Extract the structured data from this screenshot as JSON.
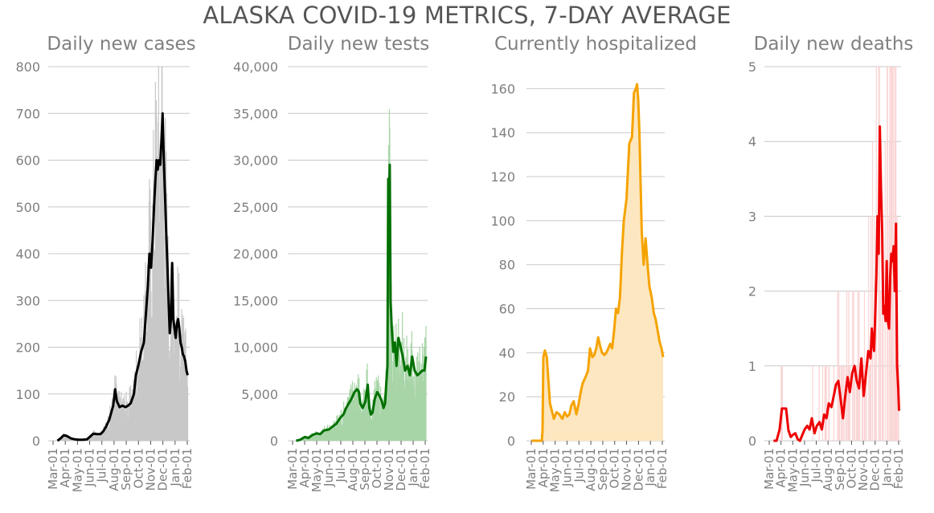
{
  "chart_data": {
    "title": "ALASKA COVID-19 METRICS, 7-DAY AVERAGE",
    "months": [
      "Mar-01",
      "Apr-01",
      "May-01",
      "Jun-01",
      "Jul-01",
      "Aug-01",
      "Sep-01",
      "Oct-01",
      "Nov-01",
      "Dec-01",
      "Jan-01",
      "Feb-01"
    ],
    "panels": [
      {
        "type": "bar+line",
        "title": "Daily new cases",
        "line_color": "#000000",
        "bar_color": "#c8c8c8",
        "ylim": [
          0,
          800
        ],
        "yticks": [
          0,
          100,
          200,
          300,
          400,
          500,
          600,
          700,
          800
        ],
        "ytick_labels": [
          "0",
          "100",
          "200",
          "300",
          "400",
          "500",
          "600",
          "700",
          "800"
        ],
        "grid": true,
        "series": [
          {
            "name": "7-day average",
            "x": [
              "2020-03-12",
              "2020-03-20",
              "2020-03-28",
              "2020-04-05",
              "2020-04-15",
              "2020-04-25",
              "2020-05-05",
              "2020-05-15",
              "2020-05-25",
              "2020-06-01",
              "2020-06-10",
              "2020-06-20",
              "2020-06-28",
              "2020-07-05",
              "2020-07-12",
              "2020-07-20",
              "2020-07-25",
              "2020-07-30",
              "2020-08-04",
              "2020-08-08",
              "2020-08-15",
              "2020-08-22",
              "2020-08-30",
              "2020-09-05",
              "2020-09-12",
              "2020-09-20",
              "2020-09-25",
              "2020-10-01",
              "2020-10-08",
              "2020-10-15",
              "2020-10-20",
              "2020-10-25",
              "2020-10-29",
              "2020-11-02",
              "2020-11-06",
              "2020-11-10",
              "2020-11-13",
              "2020-11-16",
              "2020-11-19",
              "2020-11-22",
              "2020-11-25",
              "2020-11-28",
              "2020-12-01",
              "2020-12-04",
              "2020-12-07",
              "2020-12-10",
              "2020-12-13",
              "2020-12-16",
              "2020-12-19",
              "2020-12-22",
              "2020-12-25",
              "2020-12-28",
              "2020-12-31",
              "2021-01-03",
              "2021-01-06",
              "2021-01-09",
              "2021-01-12",
              "2021-01-15",
              "2021-01-18",
              "2021-01-21",
              "2021-01-24",
              "2021-01-27",
              "2021-01-30",
              "2021-02-02"
            ],
            "y": [
              0,
              5,
              12,
              10,
              5,
              3,
              2,
              2,
              3,
              8,
              15,
              14,
              14,
              20,
              30,
              45,
              60,
              75,
              110,
              85,
              72,
              75,
              72,
              75,
              80,
              100,
              140,
              160,
              190,
              210,
              270,
              330,
              400,
              370,
              430,
              510,
              560,
              600,
              580,
              600,
              590,
              640,
              700,
              600,
              530,
              450,
              380,
              300,
              230,
              260,
              380,
              260,
              240,
              220,
              250,
              260,
              240,
              210,
              200,
              185,
              180,
              170,
              150,
              140
            ]
          }
        ]
      },
      {
        "type": "bar+line",
        "title": "Daily new tests",
        "line_color": "#007000",
        "bar_color": "#a8d5a8",
        "ylim": [
          0,
          40000
        ],
        "yticks": [
          0,
          5000,
          10000,
          15000,
          20000,
          25000,
          30000,
          35000,
          40000
        ],
        "ytick_labels": [
          "0",
          "5,000",
          "10,000",
          "15,000",
          "20,000",
          "25,000",
          "30,000",
          "35,000",
          "40,000"
        ],
        "grid": true,
        "series": [
          {
            "name": "7-day average",
            "x": [
              "2020-03-10",
              "2020-03-20",
              "2020-04-01",
              "2020-04-10",
              "2020-04-20",
              "2020-05-01",
              "2020-05-10",
              "2020-05-20",
              "2020-06-01",
              "2020-06-10",
              "2020-06-20",
              "2020-07-01",
              "2020-07-08",
              "2020-07-15",
              "2020-07-22",
              "2020-07-29",
              "2020-08-05",
              "2020-08-12",
              "2020-08-16",
              "2020-08-20",
              "2020-08-26",
              "2020-09-02",
              "2020-09-08",
              "2020-09-12",
              "2020-09-16",
              "2020-09-20",
              "2020-09-26",
              "2020-10-02",
              "2020-10-08",
              "2020-10-14",
              "2020-10-18",
              "2020-10-22",
              "2020-10-25",
              "2020-10-28",
              "2020-10-30",
              "2020-11-01",
              "2020-11-03",
              "2020-11-05",
              "2020-11-08",
              "2020-11-12",
              "2020-11-16",
              "2020-11-20",
              "2020-11-25",
              "2020-12-01",
              "2020-12-06",
              "2020-12-12",
              "2020-12-18",
              "2020-12-24",
              "2020-12-30",
              "2021-01-05",
              "2021-01-12",
              "2021-01-18",
              "2021-01-24",
              "2021-01-30",
              "2021-02-03"
            ],
            "y": [
              0,
              100,
              400,
              300,
              600,
              800,
              700,
              1100,
              1200,
              1500,
              1800,
              2500,
              2800,
              3500,
              4000,
              4500,
              5200,
              5500,
              5300,
              4000,
              3500,
              4200,
              6000,
              3500,
              2800,
              3000,
              4500,
              5200,
              4800,
              4200,
              3500,
              4000,
              6000,
              8000,
              28000,
              26500,
              29500,
              15000,
              12000,
              9500,
              10500,
              8000,
              11000,
              10000,
              9000,
              7500,
              8000,
              7000,
              9000,
              7500,
              7000,
              7200,
              7500,
              7500,
              9000
            ]
          }
        ]
      },
      {
        "type": "area",
        "title": "Currently hospitalized",
        "line_color": "#f5a300",
        "fill_color": "#fde7c0",
        "ylim": [
          0,
          170
        ],
        "yticks": [
          0,
          20,
          40,
          60,
          80,
          100,
          120,
          140,
          160
        ],
        "ytick_labels": [
          "0",
          "20",
          "40",
          "60",
          "80",
          "100",
          "120",
          "140",
          "160"
        ],
        "grid": true,
        "series": [
          {
            "name": "hospitalized",
            "x": [
              "2020-03-01",
              "2020-03-28",
              "2020-03-30",
              "2020-04-01",
              "2020-04-05",
              "2020-04-10",
              "2020-04-18",
              "2020-04-28",
              "2020-05-05",
              "2020-05-12",
              "2020-05-20",
              "2020-05-26",
              "2020-06-01",
              "2020-06-07",
              "2020-06-12",
              "2020-06-18",
              "2020-06-25",
              "2020-07-01",
              "2020-07-06",
              "2020-07-11",
              "2020-07-16",
              "2020-07-21",
              "2020-07-25",
              "2020-07-30",
              "2020-08-05",
              "2020-08-10",
              "2020-08-15",
              "2020-08-20",
              "2020-08-25",
              "2020-08-30",
              "2020-09-05",
              "2020-09-10",
              "2020-09-15",
              "2020-09-20",
              "2020-09-25",
              "2020-09-30",
              "2020-10-05",
              "2020-10-10",
              "2020-10-15",
              "2020-10-20",
              "2020-10-25",
              "2020-11-01",
              "2020-11-08",
              "2020-11-15",
              "2020-11-20",
              "2020-11-25",
              "2020-11-28",
              "2020-12-01",
              "2020-12-04",
              "2020-12-07",
              "2020-12-10",
              "2020-12-15",
              "2020-12-20",
              "2020-12-25",
              "2020-12-30",
              "2021-01-05",
              "2021-01-10",
              "2021-01-15",
              "2021-01-20",
              "2021-01-25",
              "2021-01-30",
              "2021-02-03"
            ],
            "y": [
              0,
              0,
              5,
              38,
              41,
              38,
              17,
              10,
              13,
              12,
              10,
              13,
              11,
              12,
              16,
              18,
              12,
              17,
              22,
              26,
              28,
              30,
              32,
              42,
              38,
              39,
              42,
              47,
              43,
              40,
              39,
              40,
              42,
              44,
              42,
              50,
              60,
              58,
              65,
              85,
              100,
              110,
              135,
              138,
              158,
              160,
              162,
              155,
              140,
              118,
              95,
              80,
              92,
              80,
              70,
              65,
              58,
              55,
              50,
              45,
              42,
              38
            ]
          }
        ]
      },
      {
        "type": "bar+line",
        "title": "Daily new deaths",
        "line_color": "#ee0000",
        "bar_color": "#fad4d4",
        "ylim": [
          0,
          5
        ],
        "yticks": [
          0,
          1,
          2,
          3,
          4,
          5
        ],
        "ytick_labels": [
          "0",
          "1",
          "2",
          "3",
          "4",
          "5"
        ],
        "grid": true,
        "series": [
          {
            "name": "7-day average",
            "x": [
              "2020-03-12",
              "2020-03-20",
              "2020-03-28",
              "2020-04-03",
              "2020-04-08",
              "2020-04-14",
              "2020-04-20",
              "2020-04-26",
              "2020-05-02",
              "2020-05-08",
              "2020-05-14",
              "2020-05-20",
              "2020-06-01",
              "2020-06-08",
              "2020-06-14",
              "2020-06-20",
              "2020-06-27",
              "2020-07-03",
              "2020-07-10",
              "2020-07-16",
              "2020-07-22",
              "2020-07-28",
              "2020-08-03",
              "2020-08-10",
              "2020-08-16",
              "2020-08-22",
              "2020-08-28",
              "2020-09-03",
              "2020-09-09",
              "2020-09-15",
              "2020-09-21",
              "2020-09-27",
              "2020-10-03",
              "2020-10-09",
              "2020-10-15",
              "2020-10-21",
              "2020-10-27",
              "2020-11-02",
              "2020-11-08",
              "2020-11-14",
              "2020-11-20",
              "2020-11-23",
              "2020-11-26",
              "2020-11-29",
              "2020-12-02",
              "2020-12-05",
              "2020-12-08",
              "2020-12-11",
              "2020-12-14",
              "2020-12-17",
              "2020-12-20",
              "2020-12-23",
              "2020-12-26",
              "2020-12-29",
              "2021-01-01",
              "2021-01-04",
              "2021-01-07",
              "2021-01-10",
              "2021-01-13",
              "2021-01-16",
              "2021-01-19",
              "2021-01-22",
              "2021-01-25",
              "2021-01-28",
              "2021-01-31",
              "2021-02-02"
            ],
            "y": [
              0,
              0,
              0.15,
              0.43,
              0.43,
              0.43,
              0.14,
              0.05,
              0.08,
              0.1,
              0.02,
              0,
              0.15,
              0.2,
              0.15,
              0.3,
              0.1,
              0.2,
              0.25,
              0.15,
              0.35,
              0.3,
              0.5,
              0.45,
              0.6,
              0.75,
              0.8,
              0.55,
              0.3,
              0.6,
              0.85,
              0.65,
              0.9,
              1.0,
              0.8,
              0.7,
              1.1,
              0.6,
              0.9,
              1.2,
              1.1,
              1.5,
              1.3,
              1.2,
              1.7,
              2.2,
              3.0,
              2.5,
              4.2,
              3.4,
              2.8,
              1.7,
              1.8,
              1.6,
              2.4,
              1.6,
              1.5,
              2.2,
              2.5,
              2.4,
              2.6,
              2.0,
              2.9,
              1.0,
              0.7,
              0.4
            ]
          }
        ]
      }
    ]
  }
}
